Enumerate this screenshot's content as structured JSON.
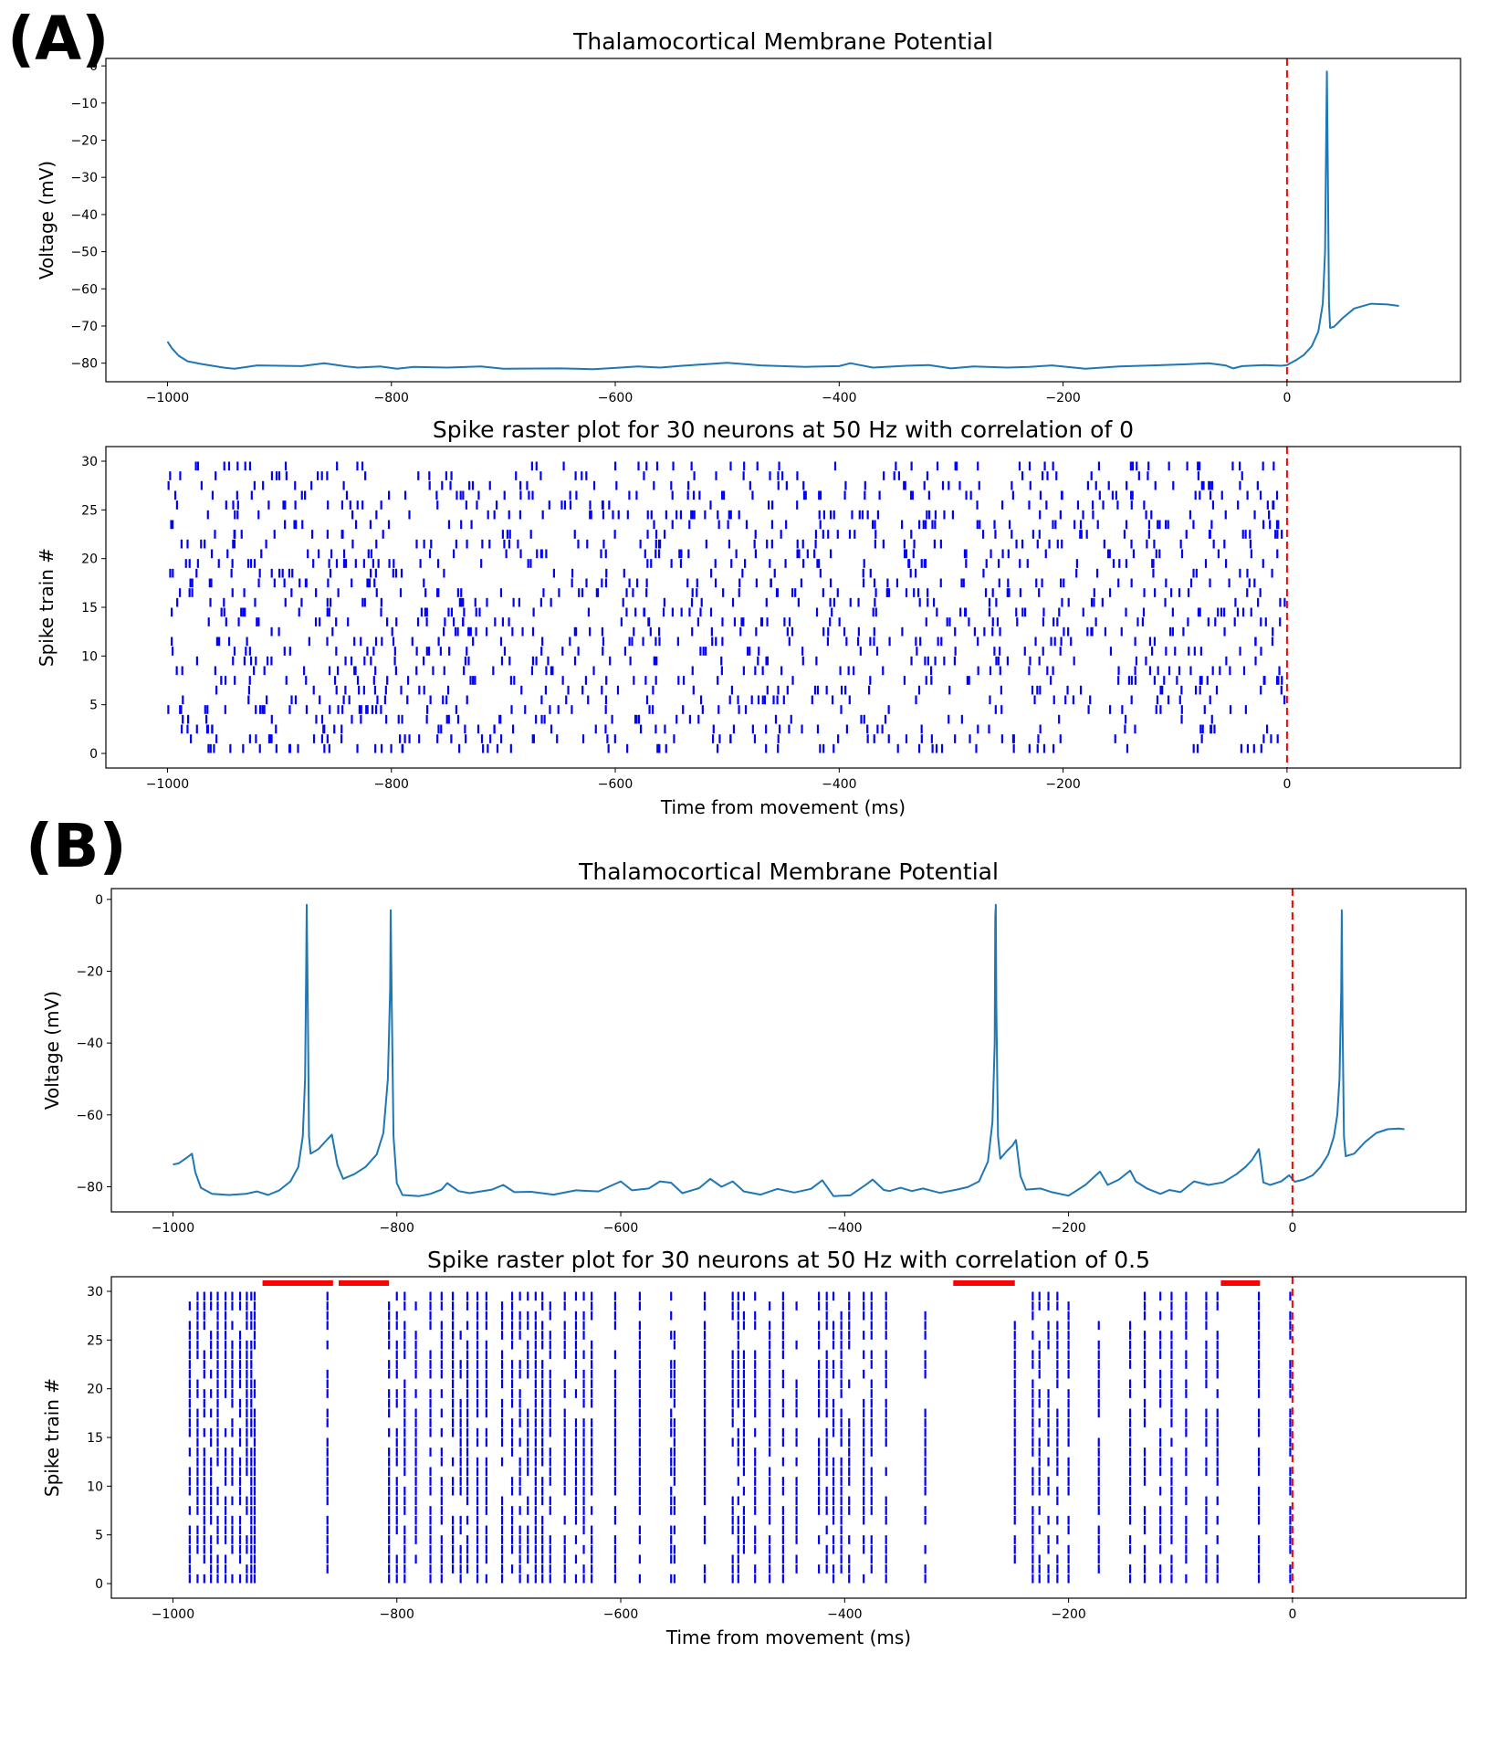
{
  "panel_labels": [
    "(A)",
    "(B)"
  ],
  "colors": {
    "voltage_line": "#1f77b4",
    "spike": "#0000ff",
    "marker": "#ff0000",
    "axes": "#000000"
  },
  "chart_data": [
    {
      "id": "A-voltage",
      "type": "line",
      "title": "Thalamocortical Membrane Potential",
      "xlabel": "",
      "ylabel": "Voltage (mV)",
      "xlim": [
        -1055,
        155
      ],
      "ylim": [
        -85,
        2
      ],
      "xticks": [
        -1000,
        -800,
        -600,
        -400,
        -200,
        0
      ],
      "yticks": [
        0,
        -10,
        -20,
        -30,
        -40,
        -50,
        -60,
        -70,
        -80
      ],
      "vline_x": 0,
      "series": [
        {
          "values": [
            [
              -1000,
              -74.2
            ],
            [
              -996,
              -76
            ],
            [
              -990,
              -78
            ],
            [
              -982,
              -79.5
            ],
            [
              -970,
              -80.2
            ],
            [
              -950,
              -81.2
            ],
            [
              -940,
              -81.5
            ],
            [
              -920,
              -80.6
            ],
            [
              -900,
              -80.7
            ],
            [
              -880,
              -80.8
            ],
            [
              -860,
              -80.0
            ],
            [
              -840,
              -80.9
            ],
            [
              -830,
              -81.2
            ],
            [
              -810,
              -80.9
            ],
            [
              -795,
              -81.5
            ],
            [
              -780,
              -81.0
            ],
            [
              -750,
              -81.2
            ],
            [
              -720,
              -80.9
            ],
            [
              -700,
              -81.5
            ],
            [
              -650,
              -81.4
            ],
            [
              -620,
              -81.6
            ],
            [
              -600,
              -81.3
            ],
            [
              -580,
              -80.9
            ],
            [
              -560,
              -81.2
            ],
            [
              -540,
              -80.7
            ],
            [
              -520,
              -80.3
            ],
            [
              -500,
              -79.9
            ],
            [
              -470,
              -80.6
            ],
            [
              -430,
              -81.0
            ],
            [
              -400,
              -80.8
            ],
            [
              -390,
              -80.0
            ],
            [
              -370,
              -81.2
            ],
            [
              -340,
              -80.7
            ],
            [
              -320,
              -80.5
            ],
            [
              -300,
              -81.4
            ],
            [
              -280,
              -80.9
            ],
            [
              -250,
              -81.2
            ],
            [
              -230,
              -81.0
            ],
            [
              -210,
              -80.6
            ],
            [
              -180,
              -81.5
            ],
            [
              -150,
              -80.9
            ],
            [
              -120,
              -80.6
            ],
            [
              -90,
              -80.3
            ],
            [
              -70,
              -80.0
            ],
            [
              -55,
              -80.6
            ],
            [
              -48,
              -81.4
            ],
            [
              -40,
              -80.8
            ],
            [
              -20,
              -80.5
            ],
            [
              -5,
              -80.7
            ],
            [
              0,
              -80.5
            ],
            [
              8,
              -79.2
            ],
            [
              15,
              -77.8
            ],
            [
              22,
              -75.5
            ],
            [
              28,
              -71.5
            ],
            [
              32,
              -64
            ],
            [
              34,
              -50
            ],
            [
              35,
              -20
            ],
            [
              35.6,
              -1.5
            ],
            [
              36.5,
              -30
            ],
            [
              37.5,
              -64
            ],
            [
              38.5,
              -70.5
            ],
            [
              42,
              -70.2
            ],
            [
              50,
              -67.8
            ],
            [
              60,
              -65.3
            ],
            [
              75,
              -64.0
            ],
            [
              90,
              -64.2
            ],
            [
              100,
              -64.6
            ]
          ]
        }
      ]
    },
    {
      "id": "A-raster",
      "type": "scatter",
      "title": "Spike raster plot for 30 neurons at 50 Hz with correlation of 0",
      "xlabel": "Time from movement (ms)",
      "ylabel": "Spike train #",
      "xlim": [
        -1055,
        155
      ],
      "ylim": [
        -1.5,
        31.5
      ],
      "xticks": [
        -1000,
        -800,
        -600,
        -400,
        -200,
        0
      ],
      "yticks": [
        0,
        5,
        10,
        15,
        20,
        25,
        30
      ],
      "vline_x": 0,
      "neurons": 30,
      "rate_hz": 50,
      "correlation": 0,
      "window_ms": [
        -1000,
        0
      ],
      "seed": 12345
    },
    {
      "id": "B-voltage",
      "type": "line",
      "title": "Thalamocortical Membrane Potential",
      "xlabel": "",
      "ylabel": "Voltage (mV)",
      "xlim": [
        -1055,
        155
      ],
      "ylim": [
        -87,
        3
      ],
      "xticks": [
        -1000,
        -800,
        -600,
        -400,
        -200,
        0
      ],
      "yticks": [
        0,
        -20,
        -40,
        -60,
        -80
      ],
      "vline_x": 0,
      "series": [
        {
          "values": [
            [
              -1000,
              -73.8
            ],
            [
              -995,
              -73.5
            ],
            [
              -988,
              -72
            ],
            [
              -983,
              -70.8
            ],
            [
              -980,
              -76
            ],
            [
              -975,
              -80.3
            ],
            [
              -965,
              -82.0
            ],
            [
              -950,
              -82.3
            ],
            [
              -935,
              -82.0
            ],
            [
              -925,
              -81.3
            ],
            [
              -915,
              -82.3
            ],
            [
              -905,
              -81.0
            ],
            [
              -895,
              -78.5
            ],
            [
              -888,
              -74.5
            ],
            [
              -884,
              -66
            ],
            [
              -882,
              -50
            ],
            [
              -881,
              -20
            ],
            [
              -880.5,
              -1.5
            ],
            [
              -879.5,
              -30
            ],
            [
              -878.5,
              -66
            ],
            [
              -877,
              -70.8
            ],
            [
              -870,
              -69.5
            ],
            [
              -862,
              -66.8
            ],
            [
              -858,
              -65.5
            ],
            [
              -853,
              -74
            ],
            [
              -848,
              -77.8
            ],
            [
              -838,
              -76.5
            ],
            [
              -828,
              -74.5
            ],
            [
              -818,
              -71
            ],
            [
              -812,
              -65
            ],
            [
              -808,
              -50
            ],
            [
              -806,
              -25
            ],
            [
              -805.5,
              -3
            ],
            [
              -804.5,
              -30
            ],
            [
              -803,
              -66
            ],
            [
              -800,
              -79
            ],
            [
              -795,
              -82.3
            ],
            [
              -780,
              -82.6
            ],
            [
              -770,
              -82.0
            ],
            [
              -760,
              -80.8
            ],
            [
              -755,
              -79.0
            ],
            [
              -745,
              -81.2
            ],
            [
              -735,
              -81.8
            ],
            [
              -715,
              -80.8
            ],
            [
              -705,
              -79.5
            ],
            [
              -695,
              -81.5
            ],
            [
              -680,
              -81.4
            ],
            [
              -660,
              -82.2
            ],
            [
              -640,
              -81.0
            ],
            [
              -620,
              -81.3
            ],
            [
              -600,
              -78.5
            ],
            [
              -590,
              -81.0
            ],
            [
              -575,
              -80.5
            ],
            [
              -565,
              -78.5
            ],
            [
              -555,
              -78.9
            ],
            [
              -545,
              -81.8
            ],
            [
              -530,
              -80.4
            ],
            [
              -520,
              -77.8
            ],
            [
              -510,
              -80.0
            ],
            [
              -500,
              -78.5
            ],
            [
              -490,
              -81.3
            ],
            [
              -475,
              -82.2
            ],
            [
              -460,
              -80.6
            ],
            [
              -445,
              -81.6
            ],
            [
              -430,
              -80.6
            ],
            [
              -420,
              -78.2
            ],
            [
              -410,
              -82.6
            ],
            [
              -395,
              -82.4
            ],
            [
              -380,
              -79.2
            ],
            [
              -375,
              -78.0
            ],
            [
              -365,
              -80.9
            ],
            [
              -360,
              -81.2
            ],
            [
              -350,
              -80.3
            ],
            [
              -340,
              -81.2
            ],
            [
              -330,
              -80.5
            ],
            [
              -315,
              -81.7
            ],
            [
              -300,
              -80.8
            ],
            [
              -290,
              -80.1
            ],
            [
              -280,
              -78.5
            ],
            [
              -272,
              -73
            ],
            [
              -268,
              -62
            ],
            [
              -266,
              -40
            ],
            [
              -265.5,
              -5
            ],
            [
              -265,
              -1.5
            ],
            [
              -264.5,
              -30
            ],
            [
              -263,
              -66
            ],
            [
              -261,
              -72.2
            ],
            [
              -255,
              -70
            ],
            [
              -250,
              -68.5
            ],
            [
              -247,
              -67
            ],
            [
              -243,
              -77
            ],
            [
              -238,
              -80.8
            ],
            [
              -225,
              -80.5
            ],
            [
              -215,
              -81.5
            ],
            [
              -200,
              -82.5
            ],
            [
              -185,
              -79.5
            ],
            [
              -172,
              -75.8
            ],
            [
              -165,
              -79.5
            ],
            [
              -155,
              -78
            ],
            [
              -145,
              -75.5
            ],
            [
              -140,
              -78.5
            ],
            [
              -130,
              -80.5
            ],
            [
              -118,
              -82.0
            ],
            [
              -110,
              -80.9
            ],
            [
              -100,
              -81.5
            ],
            [
              -88,
              -78.5
            ],
            [
              -75,
              -79.5
            ],
            [
              -62,
              -78.8
            ],
            [
              -50,
              -76.5
            ],
            [
              -42,
              -74.5
            ],
            [
              -36,
              -72.5
            ],
            [
              -30,
              -69.5
            ],
            [
              -28,
              -74
            ],
            [
              -26,
              -78.8
            ],
            [
              -20,
              -79.5
            ],
            [
              -10,
              -78.5
            ],
            [
              -3,
              -76.8
            ],
            [
              2,
              -78.6
            ],
            [
              10,
              -78.0
            ],
            [
              18,
              -76.8
            ],
            [
              25,
              -74.5
            ],
            [
              32,
              -71
            ],
            [
              37,
              -66
            ],
            [
              40,
              -60
            ],
            [
              42,
              -50
            ],
            [
              43.5,
              -25
            ],
            [
              44,
              -3
            ],
            [
              44.8,
              -35
            ],
            [
              46,
              -66
            ],
            [
              47.5,
              -71.5
            ],
            [
              55,
              -70.8
            ],
            [
              65,
              -67.5
            ],
            [
              75,
              -65.0
            ],
            [
              85,
              -64.0
            ],
            [
              95,
              -63.8
            ],
            [
              100,
              -64.0
            ]
          ]
        }
      ]
    },
    {
      "id": "B-raster",
      "type": "scatter",
      "title": "Spike raster plot for 30 neurons at 50 Hz with correlation of 0.5",
      "xlabel": "Time from movement (ms)",
      "ylabel": "Spike train #",
      "xlim": [
        -1055,
        155
      ],
      "ylim": [
        -1.5,
        31.5
      ],
      "xticks": [
        -1000,
        -800,
        -600,
        -400,
        -200,
        0
      ],
      "yticks": [
        0,
        5,
        10,
        15,
        20,
        25,
        30
      ],
      "vline_x": 0,
      "neurons": 30,
      "rate_hz": 50,
      "correlation": 0.5,
      "window_ms": [
        -1000,
        0
      ],
      "seed": 777,
      "burst_times": [
        -985,
        -978,
        -972,
        -966,
        -960,
        -953,
        -947,
        -940,
        -934,
        -930,
        -927,
        -862,
        -807,
        -800,
        -793,
        -783,
        -770,
        -760,
        -750,
        -743,
        -737,
        -728,
        -720,
        -706,
        -697,
        -690,
        -683,
        -676,
        -670,
        -663,
        -650,
        -640,
        -633,
        -626,
        -605,
        -583,
        -555,
        -552,
        -525,
        -500,
        -495,
        -490,
        -480,
        -467,
        -455,
        -443,
        -423,
        -416,
        -410,
        -403,
        -396,
        -383,
        -376,
        -363,
        -328,
        -248,
        -232,
        -226,
        -218,
        -210,
        -200,
        -173,
        -145,
        -132,
        -118,
        -108,
        -95,
        -77,
        -67,
        -30,
        -2
      ],
      "red_bars": [
        [
          -920,
          -857
        ],
        [
          -852,
          -807
        ],
        [
          -303,
          -248
        ],
        [
          -64,
          -29
        ]
      ]
    }
  ]
}
